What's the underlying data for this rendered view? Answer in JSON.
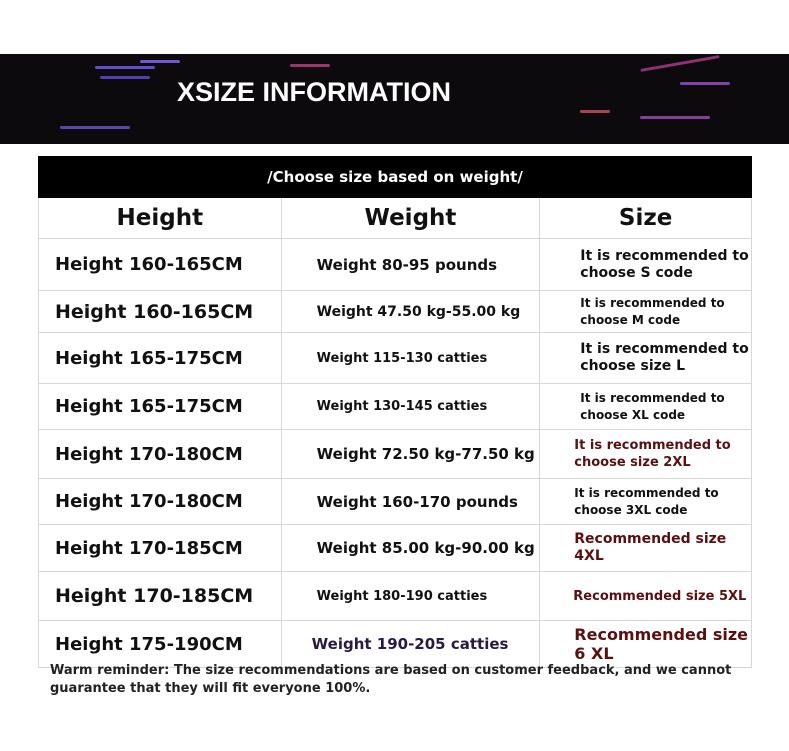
{
  "banner": {
    "title": "XSIZE INFORMATION"
  },
  "table": {
    "caption": "/Choose size based on weight/",
    "headers": [
      "Height",
      "Weight",
      "Size"
    ],
    "rows": [
      {
        "height": "Height 160-165CM",
        "weight": "Weight 80-95 pounds",
        "size": "It is recommended to choose S code"
      },
      {
        "height": "Height 160-165CM",
        "weight": "Weight 47.50 kg-55.00 kg",
        "size": "It is recommended to choose M code"
      },
      {
        "height": "Height 165-175CM",
        "weight": "Weight 115-130 catties",
        "size": "It is recommended to choose size L"
      },
      {
        "height": "Height 165-175CM",
        "weight": "Weight 130-145 catties",
        "size": "It is recommended to choose XL code"
      },
      {
        "height": "Height 170-180CM",
        "weight": "Weight 72.50 kg-77.50 kg",
        "size": "It is recommended to choose size 2XL"
      },
      {
        "height": "Height 170-180CM",
        "weight": "Weight 160-170 pounds",
        "size": "It is recommended to choose 3XL code"
      },
      {
        "height": "Height 170-185CM",
        "weight": "Weight 85.00 kg-90.00 kg",
        "size": "Recommended size 4XL"
      },
      {
        "height": "Height 170-185CM",
        "weight": "Weight 180-190 catties",
        "size": "Recommended size 5XL"
      },
      {
        "height": "Height 175-190CM",
        "weight": "Weight 190-205 catties",
        "size": "Recommended size 6 XL"
      }
    ]
  },
  "note": "Warm reminder: The size recommendations are based on customer feedback, and we cannot guarantee that they will fit everyone 100%.",
  "colors": {
    "accent_red": "#5a1010",
    "banner_bg": "#0d0a0d"
  }
}
